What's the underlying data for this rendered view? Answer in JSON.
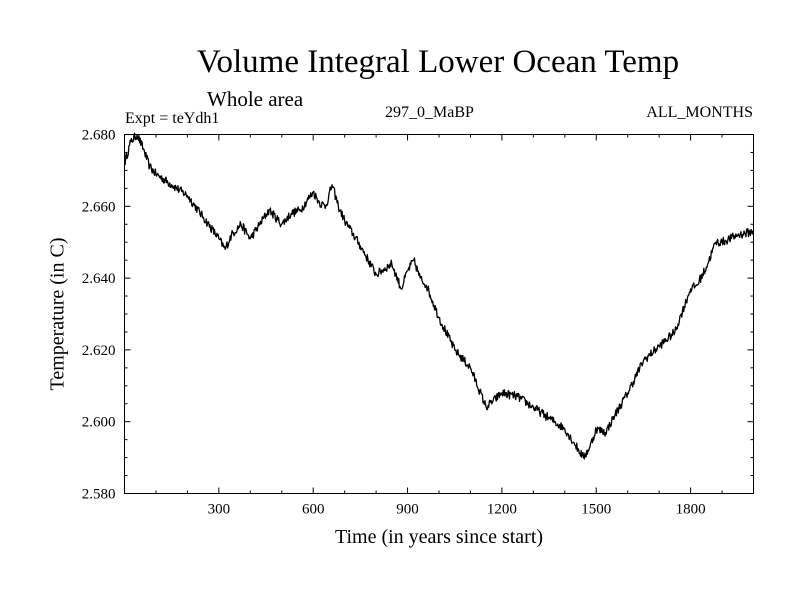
{
  "chart_data": {
    "type": "line",
    "title": "Volume Integral Lower Ocean Temp",
    "subtitle": "Whole area",
    "left_label": "Expt = teYdh1",
    "center_label": "297_0_MaBP",
    "right_label": "ALL_MONTHS",
    "xlabel": "Time (in years since start)",
    "ylabel": "Temperature (in C)",
    "xlim": [
      0,
      2000
    ],
    "ylim": [
      2.58,
      2.68
    ],
    "x_ticks": [
      300,
      600,
      900,
      1200,
      1500,
      1800
    ],
    "x_tick_labels": [
      "300",
      "600",
      "900",
      "1200",
      "1500",
      "1800"
    ],
    "y_ticks": [
      2.58,
      2.6,
      2.62,
      2.64,
      2.66,
      2.68
    ],
    "y_tick_labels": [
      "2.580",
      "2.600",
      "2.620",
      "2.640",
      "2.660",
      "2.680"
    ],
    "series": [
      {
        "name": "Volume Integral Lower Ocean Temp",
        "x": [
          0,
          20,
          40,
          60,
          80,
          100,
          150,
          200,
          250,
          300,
          320,
          340,
          370,
          400,
          430,
          460,
          500,
          530,
          560,
          600,
          620,
          640,
          660,
          680,
          700,
          750,
          800,
          850,
          880,
          900,
          920,
          940,
          960,
          1000,
          1050,
          1100,
          1150,
          1200,
          1250,
          1300,
          1350,
          1400,
          1430,
          1460,
          1480,
          1500,
          1530,
          1560,
          1600,
          1650,
          1700,
          1750,
          1800,
          1820,
          1850,
          1880,
          1900,
          1950,
          2000
        ],
        "values": [
          2.672,
          2.678,
          2.68,
          2.676,
          2.671,
          2.669,
          2.666,
          2.663,
          2.657,
          2.651,
          2.648,
          2.652,
          2.655,
          2.651,
          2.655,
          2.659,
          2.655,
          2.658,
          2.659,
          2.664,
          2.661,
          2.66,
          2.666,
          2.66,
          2.656,
          2.649,
          2.641,
          2.644,
          2.637,
          2.642,
          2.645,
          2.64,
          2.638,
          2.629,
          2.62,
          2.615,
          2.604,
          2.608,
          2.607,
          2.604,
          2.601,
          2.598,
          2.594,
          2.59,
          2.593,
          2.598,
          2.597,
          2.602,
          2.608,
          2.617,
          2.621,
          2.625,
          2.637,
          2.638,
          2.643,
          2.65,
          2.65,
          2.652,
          2.653
        ]
      }
    ]
  }
}
